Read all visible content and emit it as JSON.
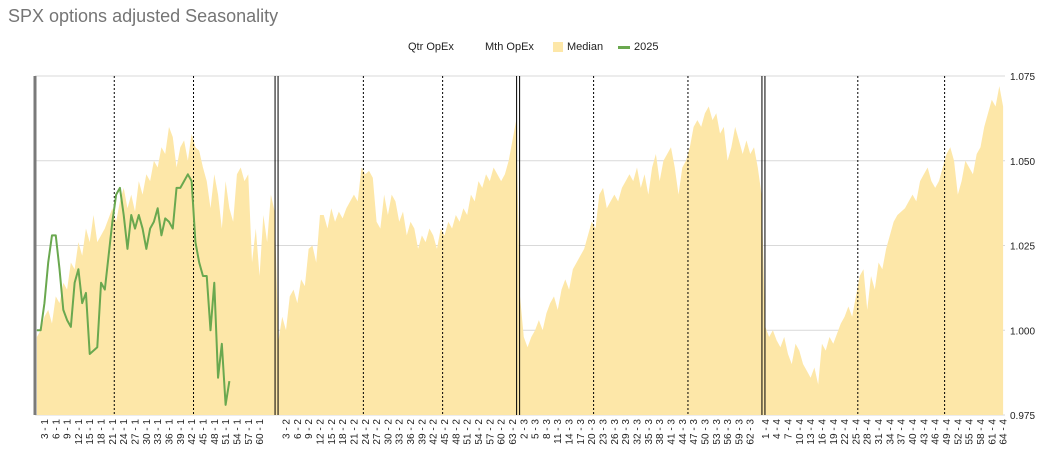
{
  "chart_data": {
    "type": "area",
    "title": "SPX options adjusted Seasonality",
    "ylim": [
      0.975,
      1.075
    ],
    "y_ticks": [
      "0.975",
      "1.000",
      "1.025",
      "1.050",
      "1.075"
    ],
    "y_gridlines": [
      0.975,
      1.0,
      1.025,
      1.05,
      1.075
    ],
    "grid": true,
    "legend_position": "top-center",
    "legend": [
      {
        "label": "Qtr OpEx",
        "kind": "vline-thick",
        "color": "#000000"
      },
      {
        "label": "Mth OpEx",
        "kind": "vline-dotted",
        "color": "#000000"
      },
      {
        "label": "Median",
        "kind": "area",
        "color": "#fde7a8"
      },
      {
        "label": "2025",
        "kind": "line",
        "color": "#6aa84f"
      }
    ],
    "quarters": [
      {
        "quarter": 1,
        "count": 64,
        "mth_opex": [
          21,
          42
        ],
        "qtr_opex": 64,
        "x_labels": [
          "3 - 1",
          "6 - 1",
          "9 - 1",
          "12 - 1",
          "15 - 1",
          "18 - 1",
          "21 - 1",
          "24 - 1",
          "27 - 1",
          "30 - 1",
          "33 - 1",
          "36 - 1",
          "39 - 1",
          "42 - 1",
          "45 - 1",
          "48 - 1",
          "51 - 1",
          "54 - 1",
          "57 - 1",
          "60 - 1"
        ]
      },
      {
        "quarter": 2,
        "count": 64,
        "mth_opex": [
          23,
          44
        ],
        "qtr_opex": 64,
        "x_labels": [
          "3 - 2",
          "6 - 2",
          "9 - 2",
          "12 - 2",
          "15 - 2",
          "18 - 2",
          "21 - 2",
          "24 - 2",
          "27 - 2",
          "30 - 2",
          "33 - 2",
          "36 - 2",
          "39 - 2",
          "42 - 2",
          "45 - 2",
          "48 - 2",
          "51 - 2",
          "54 - 2",
          "57 - 2",
          "60 - 2",
          "63 - 2"
        ]
      },
      {
        "quarter": 3,
        "count": 65,
        "mth_opex": [
          20,
          45
        ],
        "qtr_opex": 65,
        "x_labels": [
          "2 - 3",
          "5 - 3",
          "8 - 3",
          "11 - 3",
          "14 - 3",
          "17 - 3",
          "20 - 3",
          "23 - 3",
          "26 - 3",
          "29 - 3",
          "32 - 3",
          "35 - 3",
          "38 - 3",
          "41 - 3",
          "44 - 3",
          "47 - 3",
          "50 - 3",
          "53 - 3",
          "56 - 3",
          "59 - 3",
          "62 - 3"
        ]
      },
      {
        "quarter": 4,
        "count": 64,
        "mth_opex": [
          25,
          48
        ],
        "qtr_opex": null,
        "x_labels": [
          "1 - 4",
          "4 - 4",
          "7 - 4",
          "10 - 4",
          "13 - 4",
          "16 - 4",
          "19 - 4",
          "22 - 4",
          "25 - 4",
          "28 - 4",
          "31 - 4",
          "34 - 4",
          "37 - 4",
          "40 - 4",
          "43 - 4",
          "46 - 4",
          "49 - 4",
          "52 - 4",
          "55 - 4",
          "58 - 4",
          "61 - 4",
          "64 - 4"
        ]
      }
    ],
    "series": [
      {
        "name": "Median",
        "type": "area",
        "color": "#fde7a8",
        "values": [
          0.998,
          1.0,
          1.004,
          1.006,
          1.002,
          1.01,
          1.008,
          1.014,
          1.012,
          1.02,
          1.018,
          1.026,
          1.022,
          1.03,
          1.026,
          1.034,
          1.026,
          1.028,
          1.03,
          1.033,
          1.036,
          1.032,
          1.038,
          1.042,
          1.036,
          1.04,
          1.035,
          1.044,
          1.04,
          1.046,
          1.044,
          1.05,
          1.048,
          1.054,
          1.052,
          1.06,
          1.057,
          1.048,
          1.054,
          1.056,
          1.05,
          1.058,
          1.054,
          1.053,
          1.048,
          1.044,
          1.036,
          1.046,
          1.04,
          1.03,
          1.044,
          1.036,
          1.032,
          1.046,
          1.048,
          1.044,
          1.046,
          1.02,
          1.03,
          1.016,
          1.034,
          1.026,
          1.04,
          1.035,
          0.997,
          1.004,
          1.0,
          1.01,
          1.012,
          1.008,
          1.015,
          1.013,
          1.024,
          1.025,
          1.02,
          1.034,
          1.034,
          1.03,
          1.036,
          1.032,
          1.035,
          1.033,
          1.036,
          1.038,
          1.04,
          1.038,
          1.048,
          1.046,
          1.047,
          1.045,
          1.032,
          1.03,
          1.04,
          1.034,
          1.04,
          1.038,
          1.032,
          1.035,
          1.028,
          1.032,
          1.03,
          1.024,
          1.028,
          1.026,
          1.03,
          1.028,
          1.024,
          1.03,
          1.028,
          1.032,
          1.03,
          1.034,
          1.032,
          1.036,
          1.034,
          1.04,
          1.038,
          1.044,
          1.042,
          1.046,
          1.044,
          1.048,
          1.046,
          1.044,
          1.046,
          1.05,
          1.056,
          1.062,
          1.01,
          0.998,
          0.995,
          0.998,
          1.0,
          1.003,
          1.0,
          1.005,
          1.008,
          1.01,
          1.006,
          1.012,
          1.015,
          1.012,
          1.018,
          1.02,
          1.022,
          1.024,
          1.028,
          1.032,
          1.03,
          1.04,
          1.042,
          1.036,
          1.038,
          1.04,
          1.038,
          1.042,
          1.044,
          1.046,
          1.044,
          1.048,
          1.042,
          1.046,
          1.04,
          1.048,
          1.052,
          1.044,
          1.05,
          1.052,
          1.054,
          1.048,
          1.04,
          1.048,
          1.05,
          1.054,
          1.06,
          1.062,
          1.06,
          1.064,
          1.066,
          1.062,
          1.064,
          1.058,
          1.06,
          1.05,
          1.054,
          1.06,
          1.056,
          1.052,
          1.056,
          1.052,
          1.054,
          1.048,
          1.04,
          1.001,
          0.998,
          1.0,
          0.997,
          0.995,
          0.998,
          0.993,
          0.99,
          0.996,
          0.994,
          0.99,
          0.988,
          0.986,
          0.989,
          0.984,
          0.996,
          0.994,
          0.998,
          0.996,
          0.999,
          1.002,
          1.004,
          1.007,
          1.004,
          1.01,
          1.016,
          1.018,
          1.006,
          1.016,
          1.012,
          1.02,
          1.018,
          1.024,
          1.028,
          1.032,
          1.034,
          1.035,
          1.036,
          1.038,
          1.04,
          1.038,
          1.044,
          1.046,
          1.048,
          1.044,
          1.042,
          1.044,
          1.048,
          1.052,
          1.054,
          1.05,
          1.04,
          1.044,
          1.05,
          1.048,
          1.046,
          1.052,
          1.054,
          1.06,
          1.064,
          1.068,
          1.066,
          1.072,
          1.066
        ]
      },
      {
        "name": "2025",
        "type": "line",
        "color": "#6aa84f",
        "values": [
          1.0,
          1.0,
          1.008,
          1.02,
          1.028,
          1.028,
          1.018,
          1.006,
          1.003,
          1.001,
          1.014,
          1.018,
          1.008,
          1.011,
          0.993,
          0.994,
          0.995,
          1.014,
          1.012,
          1.022,
          1.032,
          1.04,
          1.042,
          1.034,
          1.024,
          1.034,
          1.03,
          1.034,
          1.03,
          1.024,
          1.03,
          1.032,
          1.036,
          1.028,
          1.033,
          1.032,
          1.03,
          1.042,
          1.042,
          1.044,
          1.046,
          1.044,
          1.026,
          1.02,
          1.016,
          1.016,
          1.0,
          1.014,
          0.986,
          0.996,
          0.978,
          0.985
        ]
      }
    ]
  }
}
